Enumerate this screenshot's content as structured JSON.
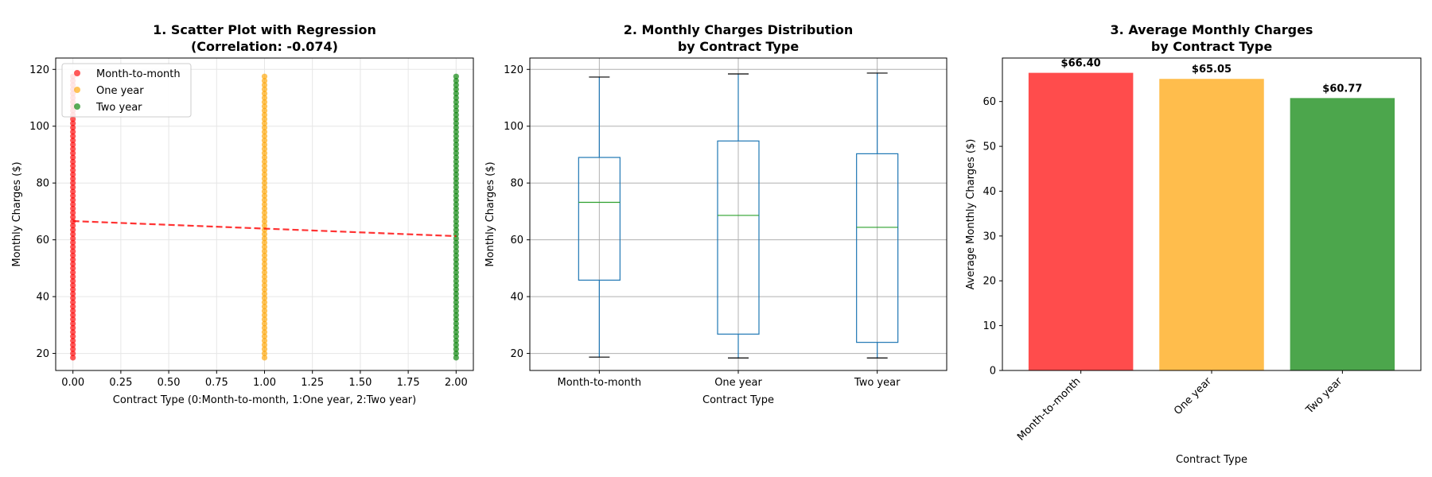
{
  "chart_data": [
    {
      "type": "scatter",
      "title_lines": [
        "1. Scatter Plot with Regression",
        "(Correlation: -0.074)"
      ],
      "xlabel": "Contract Type (0:Month-to-month, 1:One year, 2:Two year)",
      "ylabel": "Monthly Charges ($)",
      "xlim": [
        -0.09,
        2.09
      ],
      "ylim": [
        14,
        124
      ],
      "xticks": [
        "0.00",
        "0.25",
        "0.50",
        "0.75",
        "1.00",
        "1.25",
        "1.50",
        "1.75",
        "2.00"
      ],
      "yticks": [
        "20",
        "40",
        "60",
        "80",
        "100",
        "120"
      ],
      "grid": true,
      "legend_position": "top-left",
      "series": [
        {
          "name": "Month-to-month",
          "x": 0,
          "y_min": 18.5,
          "y_max": 118.5,
          "color": "#ff0000"
        },
        {
          "name": "One year",
          "x": 1,
          "y_min": 18.5,
          "y_max": 118.7,
          "color": "#ffa500"
        },
        {
          "name": "Two year",
          "x": 2,
          "y_min": 18.5,
          "y_max": 118.9,
          "color": "#008000"
        }
      ],
      "regression": {
        "x": [
          0,
          2
        ],
        "y": [
          66.6,
          61.3
        ],
        "color": "#ff0000"
      }
    },
    {
      "type": "box",
      "title_lines": [
        "2. Monthly Charges Distribution",
        "by Contract Type"
      ],
      "xlabel": "Contract Type",
      "ylabel": "Monthly Charges ($)",
      "ylim": [
        14,
        124
      ],
      "yticks": [
        "20",
        "40",
        "60",
        "80",
        "100",
        "120"
      ],
      "categories": [
        "Month-to-month",
        "One year",
        "Two year"
      ],
      "boxes": [
        {
          "whisker_low": 18.7,
          "q1": 45.8,
          "median": 73.2,
          "q3": 89.0,
          "whisker_high": 117.3
        },
        {
          "whisker_low": 18.4,
          "q1": 26.8,
          "median": 68.6,
          "q3": 94.8,
          "whisker_high": 118.4
        },
        {
          "whisker_low": 18.4,
          "q1": 23.9,
          "median": 64.4,
          "q3": 90.3,
          "whisker_high": 118.7
        }
      ],
      "grid": true
    },
    {
      "type": "bar",
      "title_lines": [
        "3. Average Monthly Charges",
        "by Contract Type"
      ],
      "xlabel": "Contract Type",
      "ylabel": "Average Monthly Charges ($)",
      "ylim": [
        0,
        69.7
      ],
      "yticks": [
        "0",
        "10",
        "20",
        "30",
        "40",
        "50",
        "60"
      ],
      "categories": [
        "Month-to-month",
        "One year",
        "Two year"
      ],
      "values": [
        66.4,
        65.05,
        60.77
      ],
      "value_labels": [
        "$66.40",
        "$65.05",
        "$60.77"
      ],
      "colors": [
        "#ff4c4c",
        "#ffbd4c",
        "#4ca64c"
      ]
    }
  ]
}
